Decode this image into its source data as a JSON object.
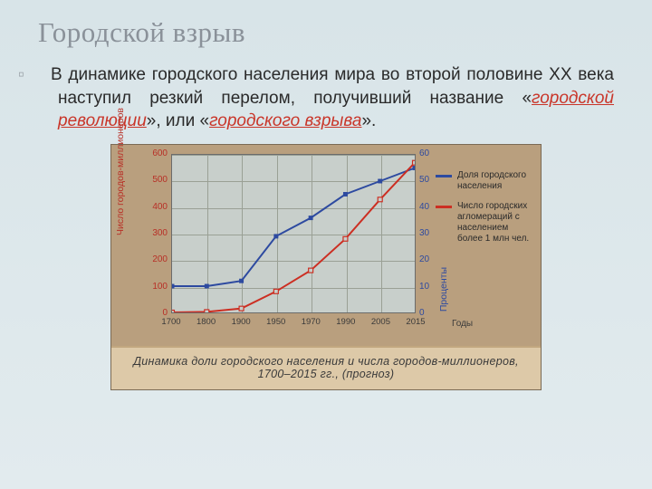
{
  "title": "Городской взрыв",
  "paragraph": {
    "lead": "В динамике городского населения мира во второй половине XX века наступил резкий перелом, получивший название «",
    "emph1": "городской революции",
    "mid": "», или «",
    "emph2": "городского взрыва",
    "tail": "»."
  },
  "chart": {
    "type": "line",
    "background_color": "#b99f7e",
    "plot_bg": "#c8cfcb",
    "grid_color": "#9aa095",
    "x_categories": [
      "1700",
      "1800",
      "1900",
      "1950",
      "1970",
      "1990",
      "2005",
      "2015"
    ],
    "x_title": "Годы",
    "left_axis": {
      "label": "Число городов-миллионеров",
      "color": "#b82f26",
      "ticks": [
        0,
        100,
        200,
        300,
        400,
        500,
        600
      ],
      "ylim": [
        0,
        600
      ]
    },
    "right_axis": {
      "label": "Проценты",
      "color": "#2d4aa0",
      "ticks": [
        0,
        10,
        20,
        30,
        40,
        50,
        60
      ],
      "ylim": [
        0,
        60
      ]
    },
    "series": [
      {
        "name": "Доля городского населения",
        "axis": "right",
        "y": [
          10,
          10,
          12,
          29,
          36,
          45,
          50,
          55
        ],
        "color": "#2d4aa0",
        "marker": "square",
        "line_width": 2
      },
      {
        "name": "Число городских агломераций с населением более 1 млн чел.",
        "axis": "left",
        "y": [
          0,
          2,
          15,
          80,
          160,
          280,
          430,
          570
        ],
        "color": "#cc2e22",
        "marker": "square-open",
        "line_width": 2
      }
    ],
    "legend": {
      "position": "right"
    },
    "caption_line1": "Динамика доли городского населения и числа городов-миллионеров,",
    "caption_line2": "1700–2015 гг., (прогноз)"
  }
}
